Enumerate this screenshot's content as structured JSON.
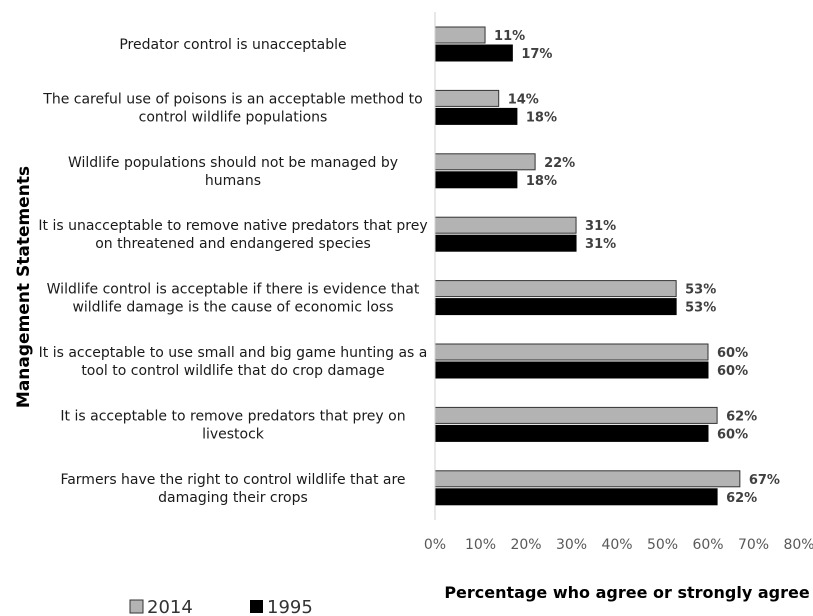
{
  "chart_data": {
    "type": "bar",
    "orientation": "horizontal",
    "categories": [
      "Predator control is unacceptable",
      "The careful use of poisons is an acceptable method to control wildlife populations",
      "Wildlife populations should not be managed by humans",
      "It is unacceptable to remove native predators that prey on threatened and endangered species",
      "Wildlife control is acceptable if there is evidence that wildlife damage is the cause of economic loss",
      "It is acceptable to use small and big game hunting as a tool to control wildlife that do crop damage",
      "It is acceptable to remove predators that prey on livestock",
      "Farmers have the right to control wildlife that are damaging their crops"
    ],
    "category_lines": [
      [
        "Predator control is unacceptable"
      ],
      [
        "The careful use of poisons is an acceptable method to",
        "control wildlife populations"
      ],
      [
        "Wildlife populations should not be managed by",
        "humans"
      ],
      [
        "It is unacceptable to remove native predators that prey",
        "on threatened and endangered species"
      ],
      [
        "Wildlife control is acceptable if there is evidence that",
        "wildlife damage is the cause of economic loss"
      ],
      [
        "It is acceptable to use small and big game hunting as a",
        "tool to control wildlife that do crop damage"
      ],
      [
        "It is acceptable to remove predators that prey on",
        "livestock"
      ],
      [
        "Farmers have the right to control wildlife that are",
        "damaging their crops"
      ]
    ],
    "series": [
      {
        "name": "2014",
        "color": "#b3b3b3",
        "values": [
          11,
          14,
          22,
          31,
          53,
          60,
          62,
          67
        ],
        "labels": [
          "11%",
          "14%",
          "22%",
          "31%",
          "53%",
          "60%",
          "62%",
          "67%"
        ]
      },
      {
        "name": "1995",
        "color": "#000000",
        "values": [
          17,
          18,
          18,
          31,
          53,
          60,
          60,
          62
        ],
        "labels": [
          "17%",
          "18%",
          "18%",
          "31%",
          "53%",
          "60%",
          "60%",
          "62%"
        ]
      }
    ],
    "xlim": [
      0,
      80
    ],
    "xticks": [
      0,
      10,
      20,
      30,
      40,
      50,
      60,
      70,
      80
    ],
    "xtick_labels": [
      "0%",
      "10%",
      "20%",
      "30%",
      "40%",
      "50%",
      "60%",
      "70%",
      "80%"
    ],
    "xlabel": "Percentage who agree or strongly agree",
    "ylabel": "Management Statements",
    "grid": false,
    "legend_position": "bottom-left"
  }
}
